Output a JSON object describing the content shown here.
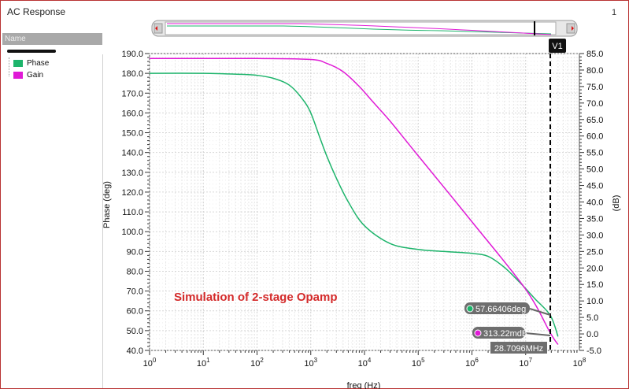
{
  "window": {
    "title": "AC Response",
    "page_number": "1"
  },
  "legend": {
    "header": "Name",
    "items": [
      {
        "label": "Phase",
        "color": "#1db46b"
      },
      {
        "label": "Gain",
        "color": "#e01ad6"
      }
    ]
  },
  "annotation": {
    "text": "Simulation of 2-stage Opamp",
    "color": "#d42a2a"
  },
  "marker": {
    "label": "V1",
    "x_label": "28.7096MHz",
    "phase_label": "57.66406deg",
    "gain_label": "313.22mdB",
    "freq_hz": 28709600,
    "phase_deg": 57.66,
    "gain_db": 0.313
  },
  "chart_data": {
    "type": "line",
    "title": "",
    "xlabel": "freq (Hz)",
    "ylabel_left": "Phase (deg)",
    "ylabel_right": "(dB)",
    "x_scale": "log",
    "xlim": [
      1,
      100000000
    ],
    "ylim_left": [
      40,
      190
    ],
    "ylim_right": [
      -5,
      85
    ],
    "grid": true,
    "x_ticks": [
      {
        "base": "10",
        "exp": "0",
        "value": 1
      },
      {
        "base": "10",
        "exp": "1",
        "value": 10
      },
      {
        "base": "10",
        "exp": "2",
        "value": 100
      },
      {
        "base": "10",
        "exp": "3",
        "value": 1000
      },
      {
        "base": "10",
        "exp": "4",
        "value": 10000
      },
      {
        "base": "10",
        "exp": "5",
        "value": 100000
      },
      {
        "base": "10",
        "exp": "6",
        "value": 1000000
      },
      {
        "base": "10",
        "exp": "7",
        "value": 10000000
      },
      {
        "base": "10",
        "exp": "8",
        "value": 100000000
      }
    ],
    "y_left_ticks": [
      "40.0",
      "50.0",
      "60.0",
      "70.0",
      "80.0",
      "90.0",
      "100.0",
      "110.0",
      "120.0",
      "130.0",
      "140.0",
      "150.0",
      "160.0",
      "170.0",
      "180.0",
      "190.0"
    ],
    "y_right_ticks": [
      "-5.0",
      "0.0",
      "5.0",
      "10.0",
      "15.0",
      "20.0",
      "25.0",
      "30.0",
      "35.0",
      "40.0",
      "45.0",
      "50.0",
      "55.0",
      "60.0",
      "65.0",
      "70.0",
      "75.0",
      "80.0",
      "85.0"
    ],
    "series": [
      {
        "name": "Phase",
        "axis": "left",
        "color": "#1db46b",
        "x": [
          1,
          10,
          50,
          100,
          200,
          400,
          700,
          1000,
          1500,
          2000,
          3000,
          5000,
          10000,
          30000,
          100000,
          300000,
          1000000,
          2000000,
          4000000,
          8000000,
          15000000,
          28709600,
          40000000
        ],
        "y": [
          180,
          180,
          179.5,
          179,
          177.5,
          174,
          167,
          160,
          147,
          138,
          127,
          115,
          103,
          94,
          91,
          90,
          89,
          87.5,
          82,
          74,
          66,
          57.7,
          47
        ]
      },
      {
        "name": "Gain",
        "axis": "right",
        "color": "#e01ad6",
        "x": [
          1,
          10,
          100,
          1000,
          2000,
          4000,
          8000,
          15000,
          30000,
          100000,
          1000000,
          10000000,
          28709600,
          40000000
        ],
        "y": [
          83.5,
          83.5,
          83.5,
          83.2,
          82.0,
          79.5,
          75.0,
          70.0,
          64.5,
          54.0,
          34.0,
          13.5,
          0.313,
          -3.2
        ]
      }
    ]
  }
}
